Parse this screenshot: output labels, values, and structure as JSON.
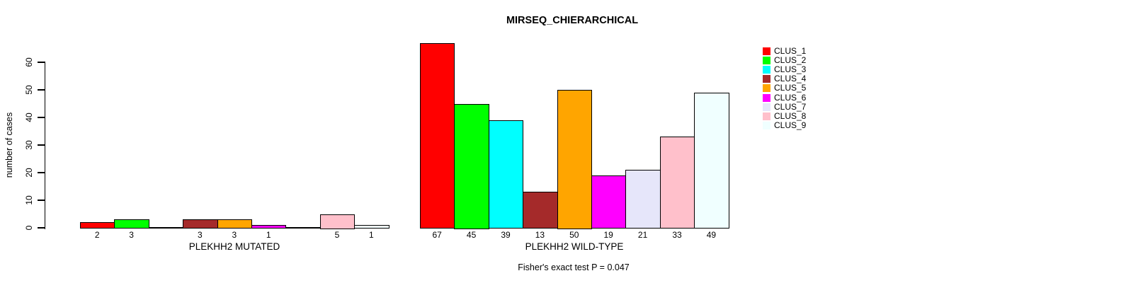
{
  "title": "MIRSEQ_CHIERARCHICAL",
  "chart_data": {
    "type": "bar",
    "title": "MIRSEQ_CHIERARCHICAL",
    "ylabel": "number of cases",
    "xlabel": "",
    "ylim": [
      0,
      60
    ],
    "yticks": [
      0,
      10,
      20,
      30,
      40,
      50,
      60
    ],
    "grid": false,
    "legend_position": "right",
    "legend_entries": [
      "CLUS_1",
      "CLUS_2",
      "CLUS_3",
      "CLUS_4",
      "CLUS_5",
      "CLUS_6",
      "CLUS_7",
      "CLUS_8",
      "CLUS_9"
    ],
    "colors": [
      "#FF0000",
      "#00FF00",
      "#00FFFF",
      "#A52A2A",
      "#FFA500",
      "#FF00FF",
      "#E6E6FA",
      "#FFC0CB",
      "#F0FFFF"
    ],
    "groups": [
      {
        "label": "PLEKHH2 MUTATED",
        "values": [
          2,
          3,
          0,
          3,
          3,
          1,
          0,
          5,
          1
        ]
      },
      {
        "label": "PLEKHH2 WILD-TYPE",
        "values": [
          67,
          45,
          39,
          13,
          50,
          19,
          21,
          33,
          49
        ]
      }
    ],
    "annotation": "Fisher's exact test P = 0.047"
  }
}
